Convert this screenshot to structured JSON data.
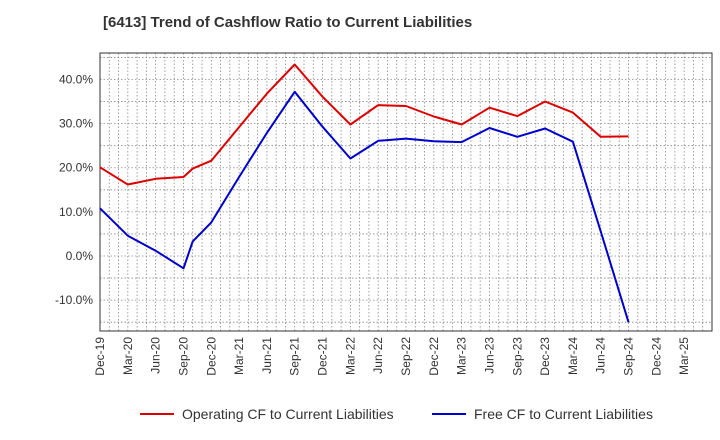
{
  "chart_data": {
    "type": "line",
    "title": "[6413]  Trend of Cashflow Ratio to Current Liabilities",
    "xlabel": "",
    "ylabel": "",
    "x_ticks": [
      "Dec-19",
      "Mar-20",
      "Jun-20",
      "Sep-20",
      "Dec-20",
      "Mar-21",
      "Jun-21",
      "Sep-21",
      "Dec-21",
      "Mar-22",
      "Jun-22",
      "Sep-22",
      "Dec-22",
      "Mar-23",
      "Jun-23",
      "Sep-23",
      "Dec-23",
      "Mar-24",
      "Jun-24",
      "Sep-24",
      "Dec-24",
      "Mar-25"
    ],
    "y_ticks": [
      -10,
      0,
      10,
      20,
      30,
      40
    ],
    "y_tick_labels": [
      "-10.0%",
      "0.0%",
      "10.0%",
      "20.0%",
      "30.0%",
      "40.0%"
    ],
    "ylim": [
      -17,
      46
    ],
    "grid": true,
    "legend_position": "bottom",
    "series": [
      {
        "name": "Operating CF to Current Liabilities",
        "color": "#dd0000",
        "x": [
          "Dec-19",
          "Mar-20",
          "Jun-20",
          "Sep-20",
          "Oct-20",
          "Dec-20",
          "Mar-21",
          "Jun-21",
          "Sep-21",
          "Dec-21",
          "Mar-22",
          "Jun-22",
          "Sep-22",
          "Dec-22",
          "Mar-23",
          "Jun-23",
          "Sep-23",
          "Dec-23",
          "Mar-24",
          "Jun-24",
          "Sep-24"
        ],
        "values": [
          20.1,
          16.2,
          17.5,
          17.9,
          19.8,
          21.6,
          29.2,
          36.8,
          43.4,
          36.1,
          29.8,
          34.2,
          34.0,
          31.6,
          29.8,
          33.6,
          31.7,
          35.0,
          32.5,
          27.0,
          27.1
        ]
      },
      {
        "name": "Free CF to Current Liabilities",
        "color": "#0000cc",
        "x": [
          "Dec-19",
          "Mar-20",
          "Jun-20",
          "Sep-20",
          "Oct-20",
          "Dec-20",
          "Mar-21",
          "Jun-21",
          "Sep-21",
          "Dec-21",
          "Mar-22",
          "Jun-22",
          "Sep-22",
          "Dec-22",
          "Mar-23",
          "Jun-23",
          "Sep-23",
          "Dec-23",
          "Mar-24",
          "Jun-24",
          "Sep-24"
        ],
        "values": [
          10.8,
          4.6,
          1.2,
          -2.8,
          3.3,
          7.6,
          17.9,
          27.9,
          37.2,
          29.3,
          22.1,
          26.1,
          26.6,
          26.0,
          25.8,
          29.0,
          27.0,
          28.9,
          25.9,
          5.6,
          -15.0
        ]
      }
    ]
  }
}
